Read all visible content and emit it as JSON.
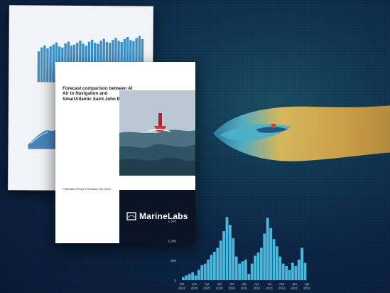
{
  "background_doc": {
    "header_left": "",
    "logo": "",
    "bars": [
      62,
      70,
      74,
      68,
      72,
      76,
      80,
      72,
      70,
      78,
      82,
      74,
      76,
      80,
      84,
      78,
      74,
      82,
      86,
      80,
      78,
      84,
      88,
      82,
      80,
      86,
      90,
      84,
      82,
      88,
      92,
      86,
      84,
      90,
      94,
      88
    ]
  },
  "front_doc": {
    "title": "Forecast comparison between AI Air to Navigation and SmartAtlantic Saint John Buoy",
    "meta": "Publication Report February 3rd, 2023",
    "meta_fine": ""
  },
  "brand": {
    "name": "MarineLabs",
    "tagline": ""
  },
  "histogram": {
    "y_ticks": [
      "0",
      "500",
      "1,000",
      "1,500"
    ],
    "x_ticks": [
      "Oct 2019",
      "Jan 2020",
      "Apr 2020",
      "Jul 2020",
      "Oct 2020",
      "Jan 2021",
      "Apr 2021",
      "Jul 2021",
      "Oct 2021",
      "Jan 2022",
      "Apr 2022"
    ],
    "bar_color": "#4bb7dc"
  },
  "colors": {
    "accent": "#4bb7dc",
    "plume_warm": "#e8b54a",
    "plume_cool": "#3fa9c9"
  }
}
